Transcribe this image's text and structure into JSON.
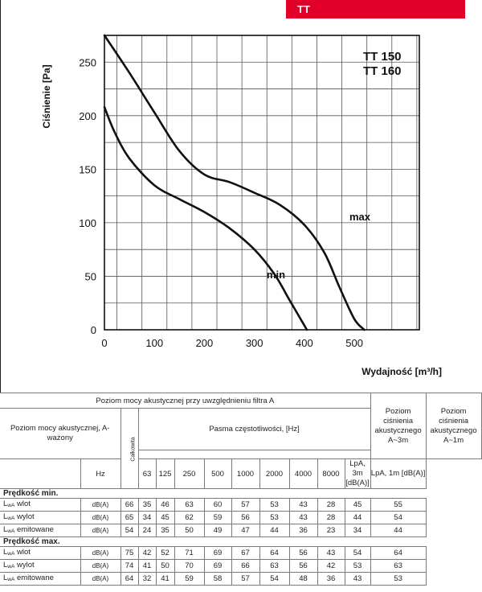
{
  "header": {
    "tag": "TT"
  },
  "chart_data": {
    "type": "line",
    "title": "",
    "series_labels": [
      "TT 150",
      "TT 160"
    ],
    "xlabel": "Wydajność [m³/h]",
    "ylabel": "Ciśnienie [Pa]",
    "xlim": [
      0,
      630
    ],
    "ylim": [
      0,
      275
    ],
    "x_ticks": [
      "0",
      "100",
      "200",
      "300",
      "400",
      "500"
    ],
    "y_ticks": [
      "0",
      "50",
      "100",
      "150",
      "200",
      "250"
    ],
    "grid": true,
    "series": [
      {
        "name": "max",
        "x": [
          0,
          50,
          100,
          150,
          200,
          250,
          300,
          350,
          400,
          440,
          470,
          500,
          520
        ],
        "y": [
          277,
          240,
          203,
          167,
          145,
          138,
          128,
          117,
          98,
          72,
          40,
          10,
          0
        ]
      },
      {
        "name": "min",
        "x": [
          0,
          20,
          50,
          100,
          150,
          200,
          250,
          300,
          340,
          370,
          390,
          405
        ],
        "y": [
          208,
          185,
          160,
          135,
          122,
          110,
          95,
          75,
          52,
          28,
          12,
          0
        ]
      }
    ]
  },
  "table": {
    "title": "Poziom mocy akustycznej przy uwzględnieniu filtra A",
    "left_header": "Poziom mocy akustycznej, A-ważony",
    "total_header": "Całkowita",
    "band_header": "Pasma częstotliwości, [Hz]",
    "lpa3_header": "Poziom ciśnienia akustycznego A~3m",
    "lpa1_header": "Poziom ciśnienia akustycznego A~1m",
    "hz_label": "Hz",
    "bands": [
      "63",
      "125",
      "250",
      "500",
      "1000",
      "2000",
      "4000",
      "8000"
    ],
    "lpa3_unit": "LpA, 3m [dB(A)]",
    "lpa1_unit": "LpA, 1m [dB(A)]",
    "lwa": "L",
    "lwa_sub": "wA",
    "unit": "dB(A)",
    "sections": [
      {
        "title": "Prędkość min.",
        "rows": [
          {
            "label": "wlot",
            "total": "66",
            "bands": [
              "35",
              "46",
              "63",
              "60",
              "57",
              "53",
              "43",
              "28"
            ],
            "lpa3": "45",
            "lpa1": "55"
          },
          {
            "label": "wylot",
            "total": "65",
            "bands": [
              "34",
              "45",
              "62",
              "59",
              "56",
              "53",
              "43",
              "28"
            ],
            "lpa3": "44",
            "lpa1": "54"
          },
          {
            "label": "emitowane",
            "total": "54",
            "bands": [
              "24",
              "35",
              "50",
              "49",
              "47",
              "44",
              "36",
              "23"
            ],
            "lpa3": "34",
            "lpa1": "44"
          }
        ]
      },
      {
        "title": "Prędkość max.",
        "rows": [
          {
            "label": "wlot",
            "total": "75",
            "bands": [
              "42",
              "52",
              "71",
              "69",
              "67",
              "64",
              "56",
              "43"
            ],
            "lpa3": "54",
            "lpa1": "64"
          },
          {
            "label": "wylot",
            "total": "74",
            "bands": [
              "41",
              "50",
              "70",
              "69",
              "66",
              "63",
              "56",
              "42"
            ],
            "lpa3": "53",
            "lpa1": "63"
          },
          {
            "label": "emitowane",
            "total": "64",
            "bands": [
              "32",
              "41",
              "59",
              "58",
              "57",
              "54",
              "48",
              "36"
            ],
            "lpa3": "43",
            "lpa1": "53"
          }
        ]
      }
    ]
  }
}
